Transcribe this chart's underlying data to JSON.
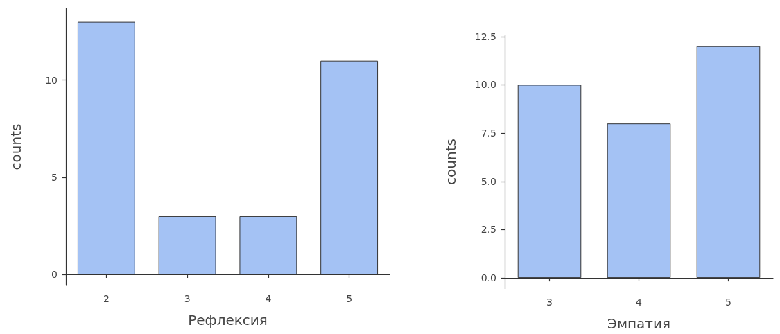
{
  "chart_data": [
    {
      "type": "bar",
      "xlabel": "Рефлексия",
      "ylabel": "counts",
      "categories": [
        "2",
        "3",
        "4",
        "5"
      ],
      "values": [
        13,
        3,
        3,
        11
      ],
      "color": "#a4c2f4",
      "ylim": [
        -0.57,
        13.7
      ],
      "yticks": [
        0,
        5,
        10
      ],
      "grid": false
    },
    {
      "type": "bar",
      "xlabel": "Эмпатия",
      "ylabel": "counts",
      "categories": [
        "3",
        "4",
        "5"
      ],
      "values": [
        10,
        8,
        12
      ],
      "color": "#a4c2f4",
      "ylim": [
        -0.57,
        12.6
      ],
      "yticks": [
        {
          "value": 0,
          "label": "0.0"
        },
        {
          "value": 2.5,
          "label": "2.5"
        },
        {
          "value": 5,
          "label": "5.0"
        },
        {
          "value": 7.5,
          "label": "7.5"
        },
        {
          "value": 10,
          "label": "10.0"
        },
        {
          "value": 12.5,
          "label": "12.5"
        }
      ],
      "grid": false
    }
  ]
}
